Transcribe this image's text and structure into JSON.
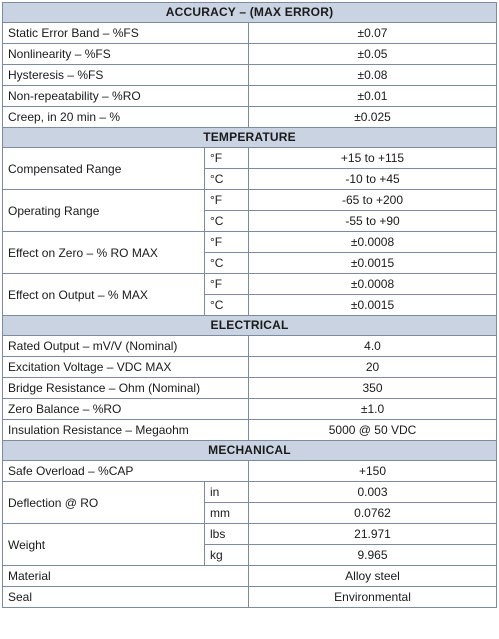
{
  "sections": {
    "accuracy": {
      "title": "ACCURACY – (MAX ERROR)",
      "rows": [
        {
          "label": "Static Error Band – %FS",
          "value": "±0.07"
        },
        {
          "label": "Nonlinearity – %FS",
          "value": "±0.05"
        },
        {
          "label": "Hysteresis – %FS",
          "value": "±0.08"
        },
        {
          "label": "Non-repeatability – %RO",
          "value": "±0.01"
        },
        {
          "label": "Creep, in 20 min – %",
          "value": "±0.025"
        }
      ]
    },
    "temperature": {
      "title": "TEMPERATURE",
      "groups": [
        {
          "label": "Compensated Range",
          "rows": [
            {
              "unit": "°F",
              "value": "+15 to +115"
            },
            {
              "unit": "°C",
              "value": "-10 to +45"
            }
          ]
        },
        {
          "label": "Operating Range",
          "rows": [
            {
              "unit": "°F",
              "value": "-65 to +200"
            },
            {
              "unit": "°C",
              "value": "-55 to +90"
            }
          ]
        },
        {
          "label": "Effect on Zero – % RO MAX",
          "rows": [
            {
              "unit": "°F",
              "value": "±0.0008"
            },
            {
              "unit": "°C",
              "value": "±0.0015"
            }
          ]
        },
        {
          "label": "Effect on Output – % MAX",
          "rows": [
            {
              "unit": "°F",
              "value": "±0.0008"
            },
            {
              "unit": "°C",
              "value": "±0.0015"
            }
          ]
        }
      ]
    },
    "electrical": {
      "title": "ELECTRICAL",
      "rows": [
        {
          "label": "Rated Output – mV/V (Nominal)",
          "value": "4.0"
        },
        {
          "label": "Excitation Voltage – VDC MAX",
          "value": "20"
        },
        {
          "label": "Bridge Resistance – Ohm (Nominal)",
          "value": "350"
        },
        {
          "label": "Zero Balance – %RO",
          "value": "±1.0"
        },
        {
          "label": "Insulation Resistance – Megaohm",
          "value": "5000 @ 50 VDC"
        }
      ]
    },
    "mechanical": {
      "title": "MECHANICAL",
      "safe_overload": {
        "label": "Safe Overload – %CAP",
        "value": "+150"
      },
      "deflection": {
        "label": "Deflection @ RO",
        "rows": [
          {
            "unit": "in",
            "value": "0.003"
          },
          {
            "unit": "mm",
            "value": "0.0762"
          }
        ]
      },
      "weight": {
        "label": "Weight",
        "rows": [
          {
            "unit": "lbs",
            "value": "21.971"
          },
          {
            "unit": "kg",
            "value": "9.965"
          }
        ]
      },
      "material": {
        "label": "Material",
        "value": "Alloy steel"
      },
      "seal": {
        "label": "Seal",
        "value": "Environmental"
      }
    }
  }
}
